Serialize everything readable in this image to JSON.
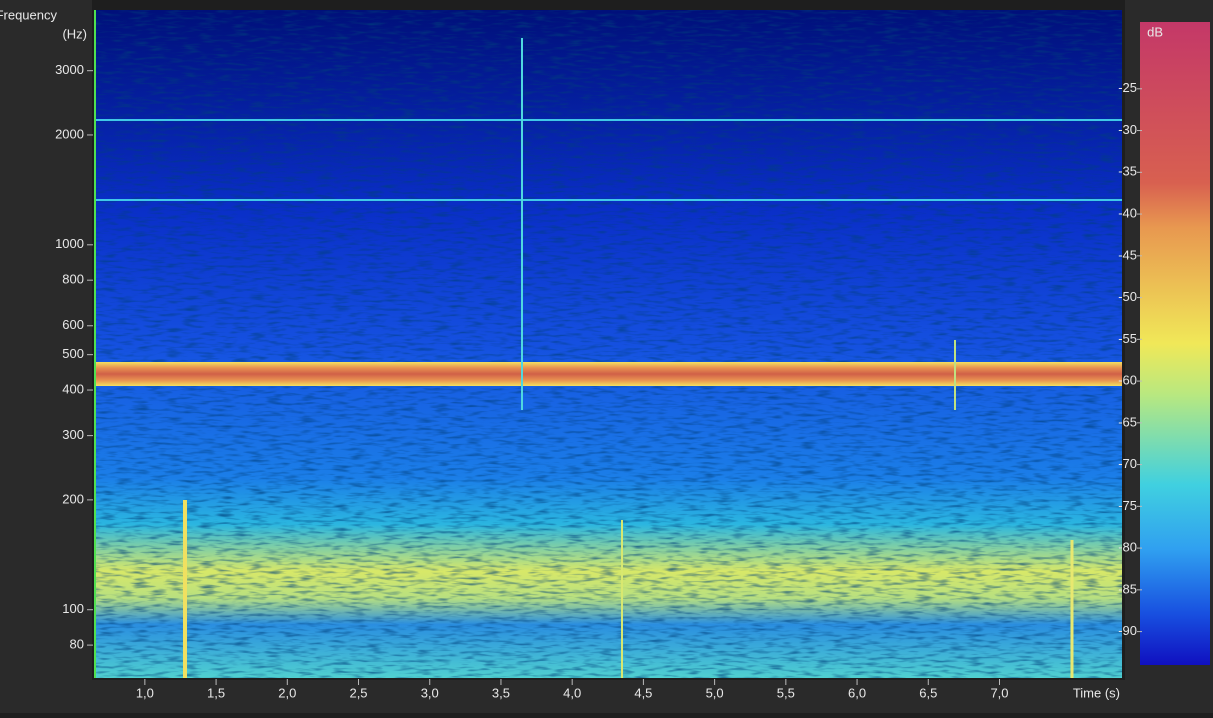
{
  "chart_data": {
    "type": "spectrogram",
    "y_label": [
      "Frequency",
      "(Hz)"
    ],
    "x_label": "Time (s)",
    "y_log": true,
    "xlim": [
      0.65,
      7.86
    ],
    "xticks": [
      {
        "value": 1.0,
        "label": "1,0"
      },
      {
        "value": 1.5,
        "label": "1,5"
      },
      {
        "value": 2.0,
        "label": "2,0"
      },
      {
        "value": 2.5,
        "label": "2,5"
      },
      {
        "value": 3.0,
        "label": "3,0"
      },
      {
        "value": 3.5,
        "label": "3,5"
      },
      {
        "value": 4.0,
        "label": "4,0"
      },
      {
        "value": 4.5,
        "label": "4,5"
      },
      {
        "value": 5.0,
        "label": "5,0"
      },
      {
        "value": 5.5,
        "label": "5,5"
      },
      {
        "value": 6.0,
        "label": "6,0"
      },
      {
        "value": 6.5,
        "label": "6,5"
      },
      {
        "value": 7.0,
        "label": "7,0"
      }
    ],
    "ylim": [
      65,
      4400
    ],
    "yticks": [
      80,
      100,
      200,
      300,
      400,
      500,
      600,
      800,
      1000,
      2000,
      3000
    ],
    "colorbar": {
      "label": "dB",
      "ylim": [
        -17,
        -94
      ],
      "yticks": [
        -25,
        -30,
        -35,
        -40,
        -45,
        -50,
        -55,
        -60,
        -65,
        -70,
        -75,
        -80,
        -85,
        -90
      ]
    }
  }
}
